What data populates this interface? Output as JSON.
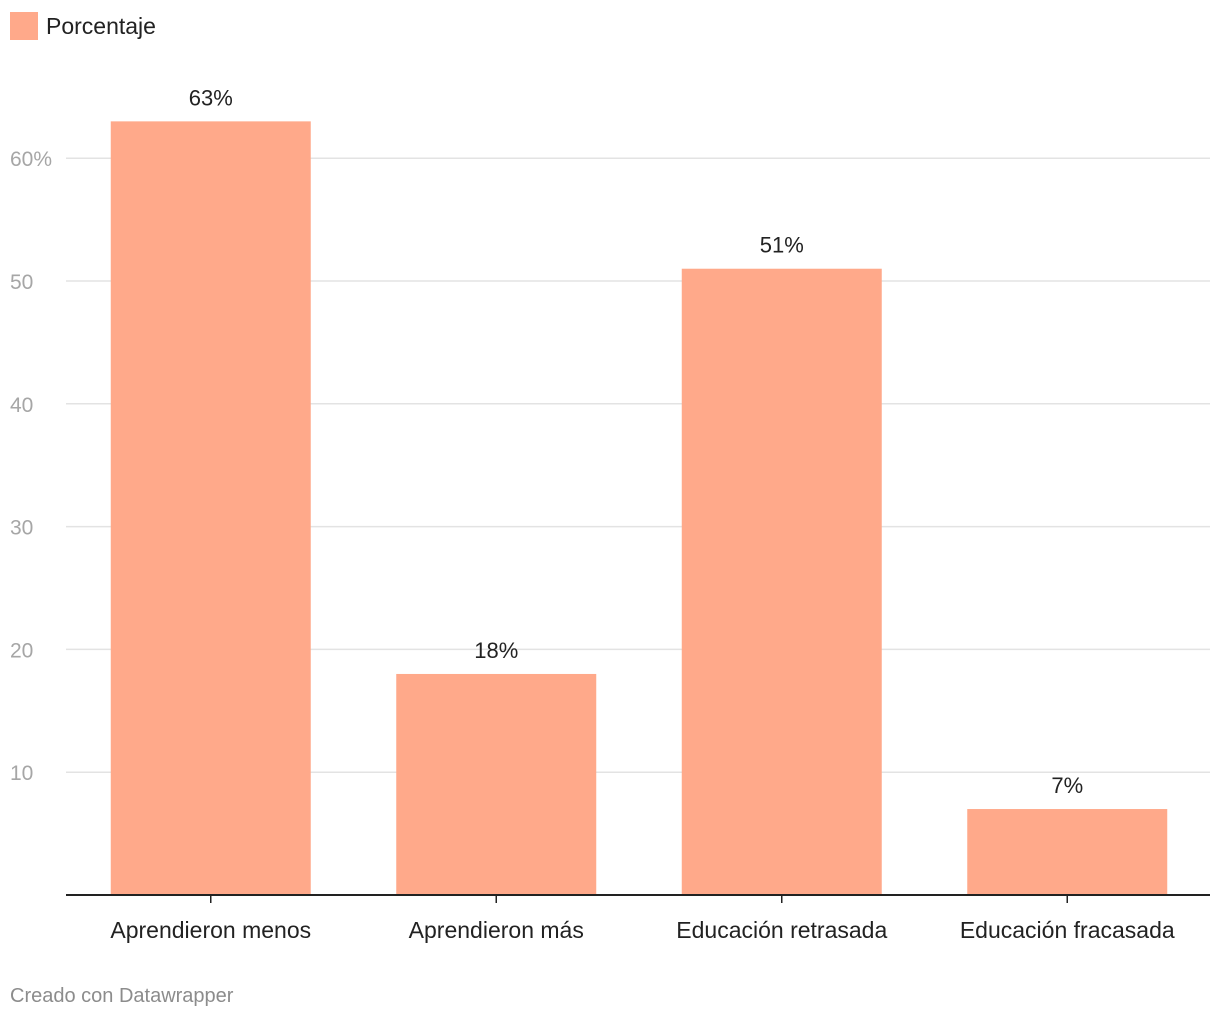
{
  "legend": {
    "label": "Porcentaje"
  },
  "credit": "Creado con Datawrapper",
  "colors": {
    "bar": "#ffa98a",
    "grid": "#e3e3e3",
    "axis": "#222222",
    "tick_label": "#a6a6a6",
    "text": "#222222"
  },
  "chart_data": {
    "type": "bar",
    "categories": [
      "Aprendieron menos",
      "Aprendieron más",
      "Educación retrasada",
      "Educación fracasada"
    ],
    "series": [
      {
        "name": "Porcentaje",
        "values": [
          63,
          18,
          51,
          7
        ]
      }
    ],
    "value_labels": [
      "63%",
      "18%",
      "51%",
      "7%"
    ],
    "yticks": [
      10,
      20,
      30,
      40,
      50,
      60
    ],
    "ytick_labels": [
      "10",
      "20",
      "30",
      "40",
      "50",
      "60%"
    ],
    "ylim": [
      0,
      63
    ],
    "grid": true,
    "legend_position": "top-left"
  }
}
